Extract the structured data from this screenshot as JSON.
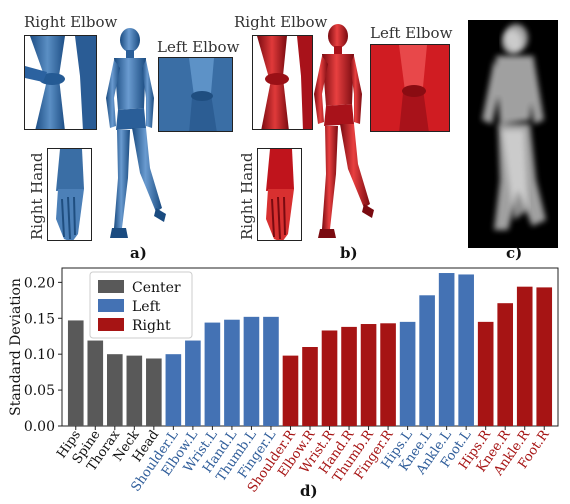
{
  "figure": {
    "panel_a": {
      "caption": "a)",
      "labels": {
        "right_elbow": "Right Elbow",
        "left_elbow": "Left Elbow",
        "right_hand": "Right Hand"
      }
    },
    "panel_b": {
      "caption": "b)",
      "labels": {
        "right_elbow": "Right Elbow",
        "left_elbow": "Left Elbow",
        "right_hand": "Right Hand"
      }
    },
    "panel_c": {
      "caption": "c)"
    },
    "panel_d": {
      "caption": "d)"
    },
    "colors": {
      "center": "#595959",
      "left": "#4472b4",
      "right": "#a61414",
      "mannequin_blue": "#3a6ea5",
      "mannequin_red": "#c0141c"
    }
  },
  "chart_data": {
    "type": "bar",
    "ylabel": "Standard Deviation",
    "xlabel": "",
    "ylim": [
      0,
      0.22
    ],
    "yticks": [
      "0.00",
      "0.05",
      "0.10",
      "0.15",
      "0.20"
    ],
    "legend": {
      "placement": "top-left",
      "entries": [
        "Center",
        "Left",
        "Right"
      ]
    },
    "categories": [
      "Hips",
      "Spine",
      "Thorax",
      "Neck",
      "Head",
      "Shoulder.L",
      "Elbow.L",
      "Wrist.L",
      "Hand.L",
      "Thumb.L",
      "Finger.L",
      "Shoulder.R",
      "Elbow.R",
      "Wrist.R",
      "Hand.R",
      "Thumb.R",
      "Finger.R",
      "Hips.L",
      "Knee.L",
      "Ankle.L",
      "Foot.L",
      "Hips.R",
      "Knee.R",
      "Ankle.R",
      "Foot.R"
    ],
    "groups": [
      "Center",
      "Center",
      "Center",
      "Center",
      "Center",
      "Left",
      "Left",
      "Left",
      "Left",
      "Left",
      "Left",
      "Right",
      "Right",
      "Right",
      "Right",
      "Right",
      "Right",
      "Left",
      "Left",
      "Left",
      "Left",
      "Right",
      "Right",
      "Right",
      "Right"
    ],
    "values": [
      0.147,
      0.119,
      0.1,
      0.098,
      0.094,
      0.1,
      0.119,
      0.144,
      0.148,
      0.152,
      0.152,
      0.098,
      0.11,
      0.133,
      0.138,
      0.142,
      0.143,
      0.145,
      0.182,
      0.213,
      0.211,
      0.145,
      0.171,
      0.194,
      0.193
    ]
  }
}
